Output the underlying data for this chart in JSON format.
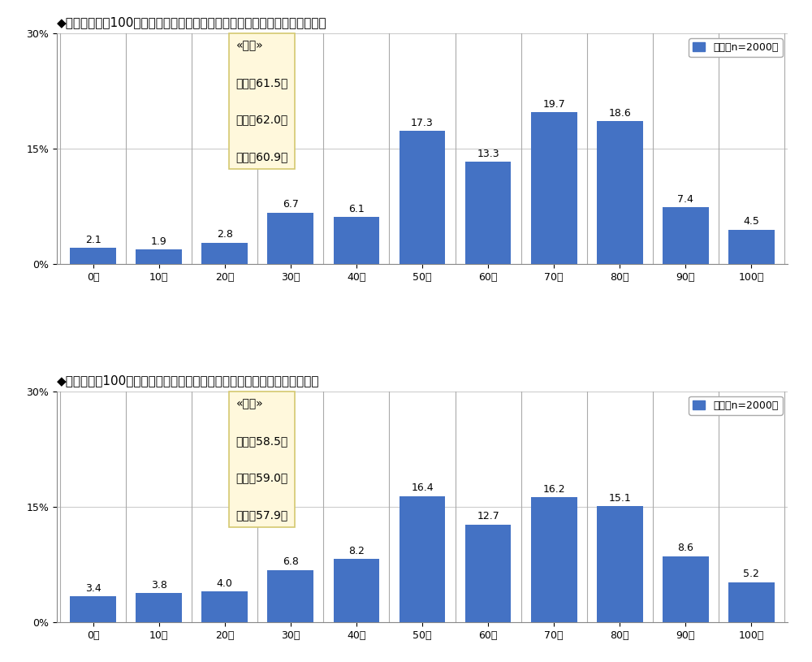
{
  "chart1_title": "◆身体の健康を100点満点で自己採点すると何点になるか　（単一回答形式）",
  "chart2_title": "◆心の健康を100点満点で自己採点すると何点になるか　（単一回答形式）",
  "categories": [
    "0点",
    "10点",
    "20点",
    "30点",
    "40点",
    "50点",
    "60点",
    "70点",
    "80点",
    "90点",
    "100点"
  ],
  "chart1_values": [
    2.1,
    1.9,
    2.8,
    6.7,
    6.1,
    17.3,
    13.3,
    19.7,
    18.6,
    7.4,
    4.5
  ],
  "chart2_values": [
    3.4,
    3.8,
    4.0,
    6.8,
    8.2,
    16.4,
    12.7,
    16.2,
    15.1,
    8.6,
    5.2
  ],
  "bar_color": "#4472C4",
  "chart1_annotation_line1": "«平均»",
  "chart1_annotation_line2": "全体：61.5点",
  "chart1_annotation_line3": "男性：62.0点",
  "chart1_annotation_line4": "女性：60.9点",
  "chart2_annotation_line1": "«平均»",
  "chart2_annotation_line2": "全体：58.5点",
  "chart2_annotation_line3": "男性：59.0点",
  "chart2_annotation_line4": "女性：57.9点",
  "legend_label": "全体【n=2000】",
  "legend_color": "#4472C4",
  "ylim_max": 30,
  "yticks": [
    0,
    15,
    30
  ],
  "ytick_labels": [
    "0%",
    "15%",
    "30%"
  ],
  "background_color": "#FFFFFF",
  "plot_bg_color": "#FFFFFF",
  "annotation_bg_color": "#FFF8DC",
  "annotation_border_color": "#D4C870",
  "title_fontsize": 11,
  "bar_label_fontsize": 9,
  "tick_fontsize": 9,
  "legend_fontsize": 9,
  "annotation_fontsize": 10,
  "annotation_title_fontsize": 11
}
